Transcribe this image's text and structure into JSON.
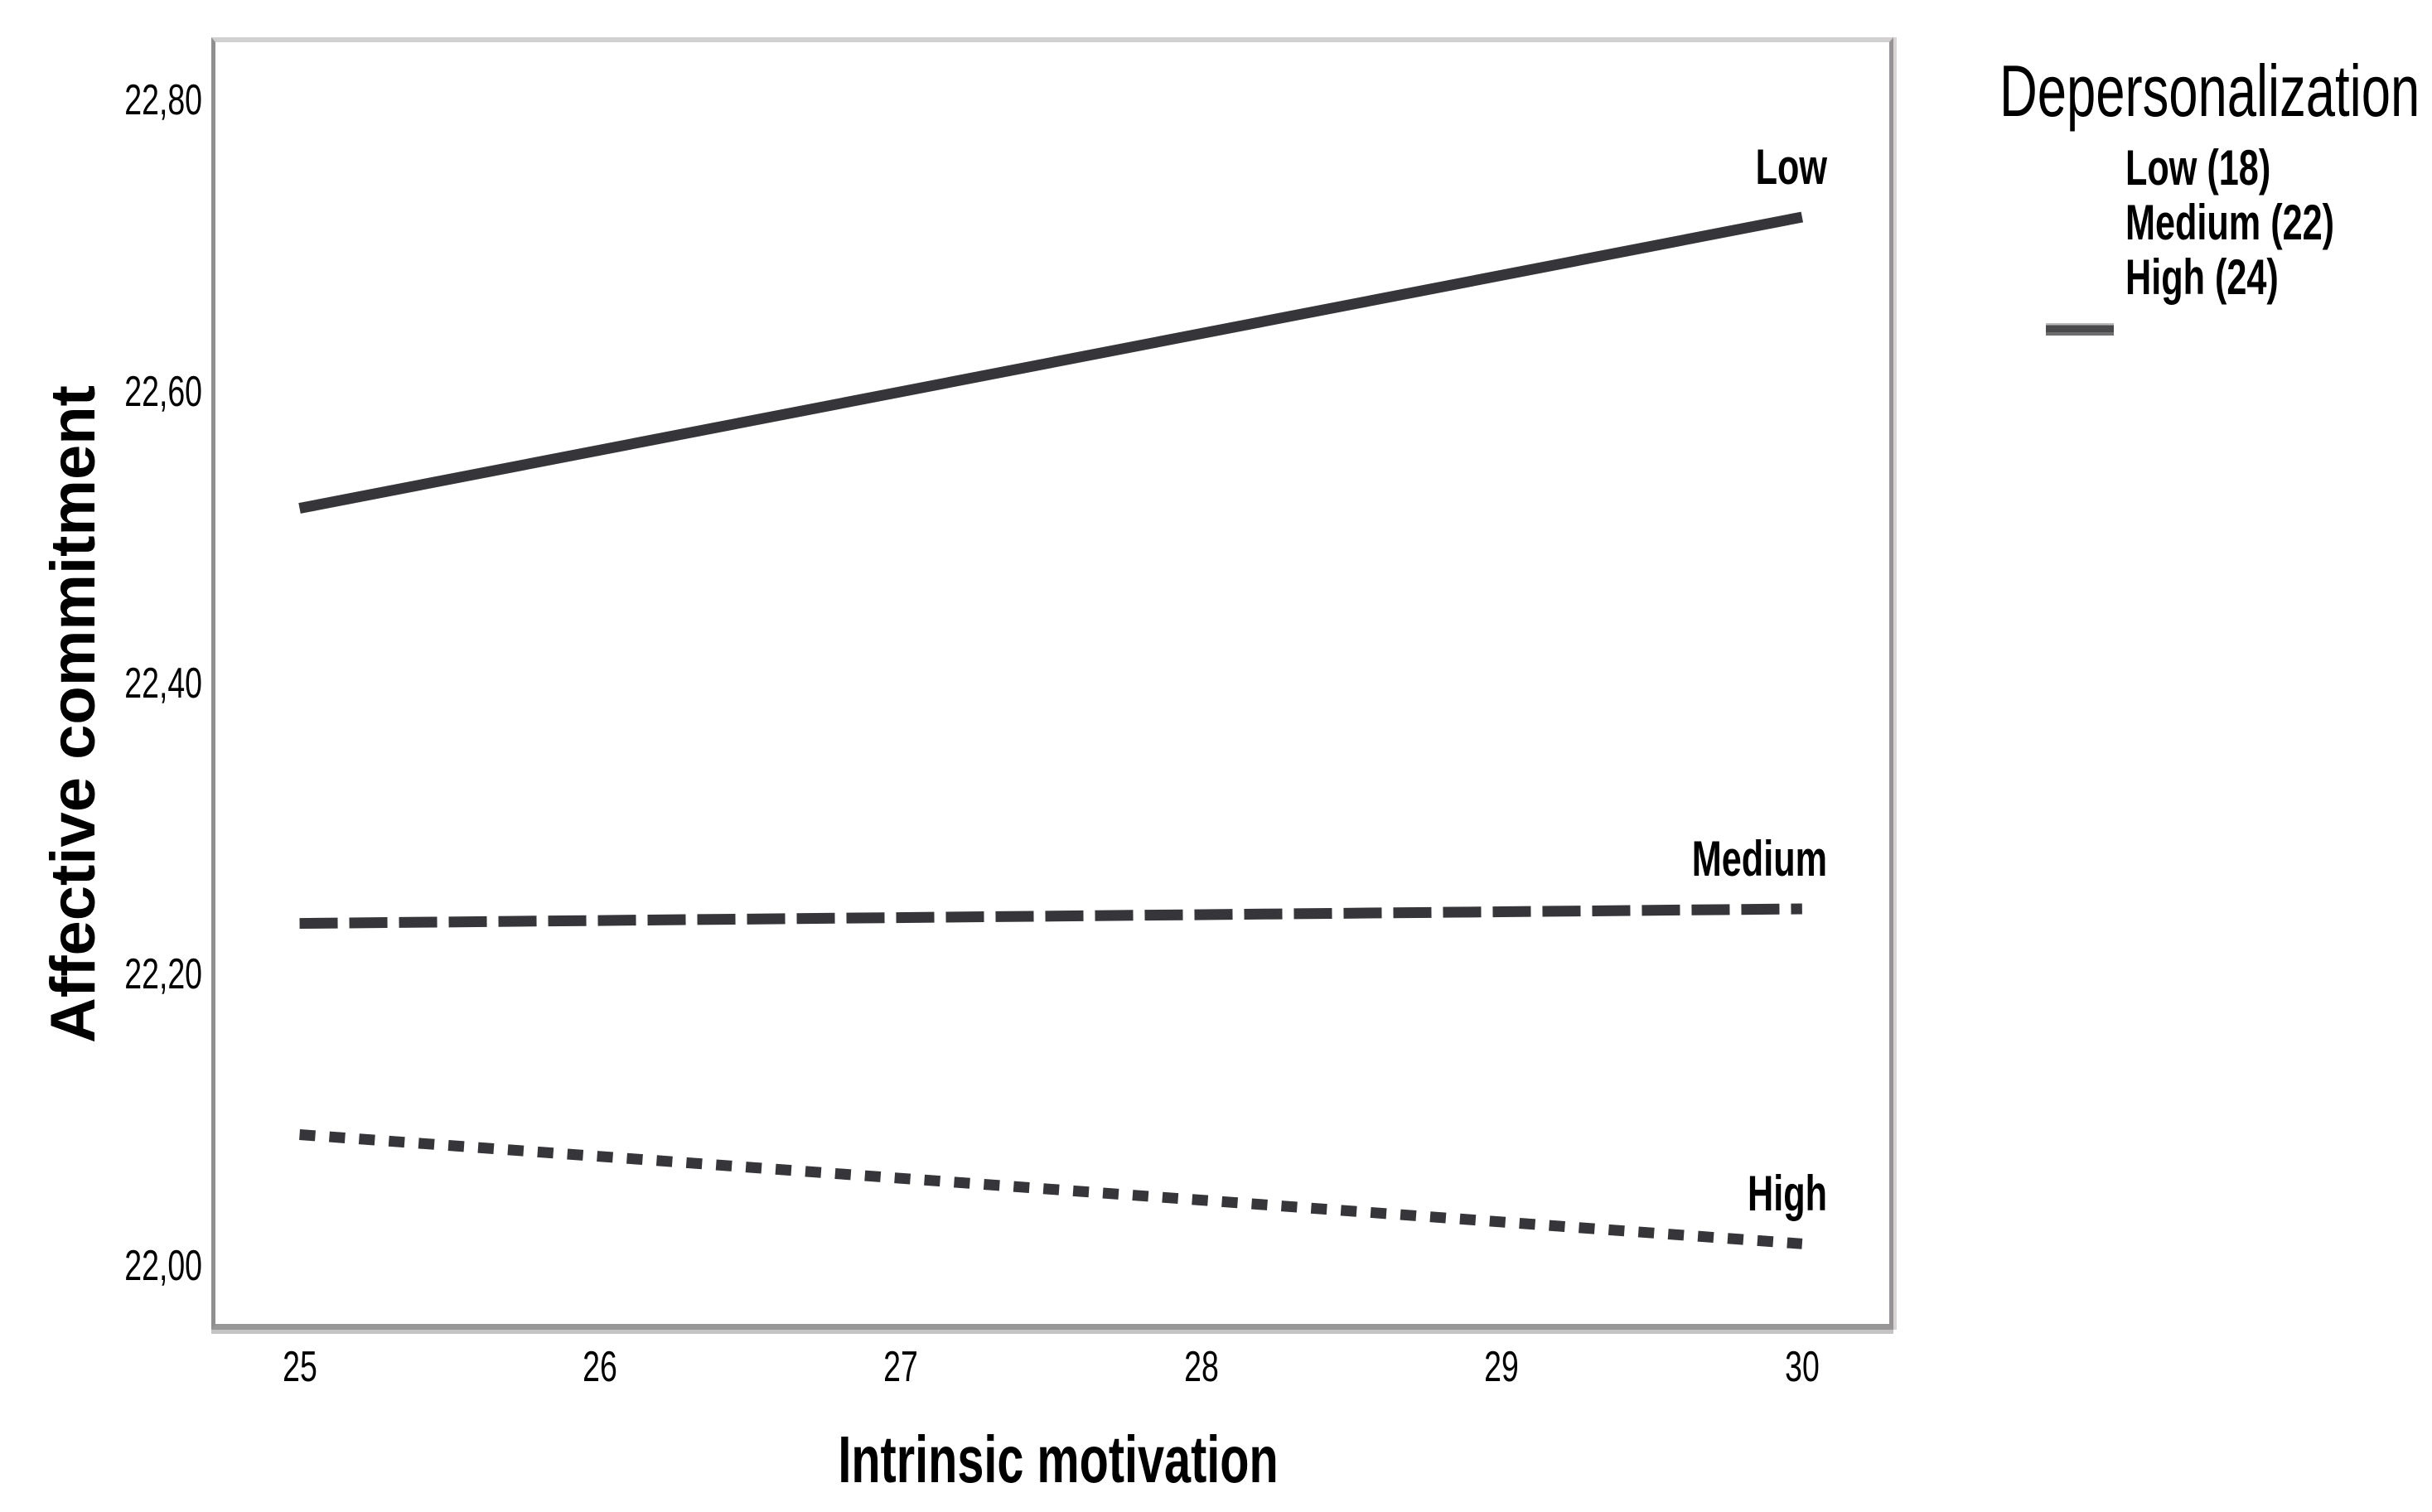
{
  "chart_data": {
    "type": "line",
    "title": "",
    "xlabel": "Intrinsic motivation",
    "ylabel": "Affective commitment",
    "x": [
      25,
      30
    ],
    "series": [
      {
        "name": "Low",
        "values": [
          22.52,
          22.72
        ],
        "line_style": "solid",
        "end_label": "Low"
      },
      {
        "name": "Medium",
        "values": [
          22.235,
          22.245
        ],
        "line_style": "dashed",
        "end_label": "Medium"
      },
      {
        "name": "High",
        "values": [
          22.09,
          22.015
        ],
        "line_style": "dotted",
        "end_label": "High"
      }
    ],
    "x_ticks": [
      {
        "value": 25,
        "label": "25"
      },
      {
        "value": 26,
        "label": "26"
      },
      {
        "value": 27,
        "label": "27"
      },
      {
        "value": 28,
        "label": "28"
      },
      {
        "value": 29,
        "label": "29"
      },
      {
        "value": 30,
        "label": "30"
      }
    ],
    "y_ticks": [
      {
        "value": 22.0,
        "label": "22,00"
      },
      {
        "value": 22.2,
        "label": "22,20"
      },
      {
        "value": 22.4,
        "label": "22,40"
      },
      {
        "value": 22.6,
        "label": "22,60"
      },
      {
        "value": 22.8,
        "label": "22,80"
      }
    ],
    "xlim": [
      24.72,
      30.29
    ],
    "ylim": [
      21.96,
      22.84
    ],
    "grid": false,
    "decimal_separator": ",",
    "line_color": "#35353a",
    "legend_position": "right"
  },
  "legend": {
    "title": "Depersonalization",
    "items": [
      {
        "label": "Low (18)"
      },
      {
        "label": "Medium (22)"
      },
      {
        "label": "High (24)"
      }
    ]
  }
}
